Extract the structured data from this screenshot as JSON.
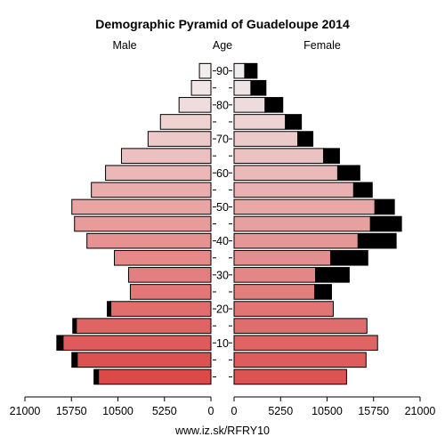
{
  "chart_data": {
    "type": "population-pyramid",
    "title": "Demographic Pyramid of Guadeloupe 2014",
    "left_label": "Male",
    "center_label": "Age",
    "right_label": "Female",
    "footer": "www.iz.sk/RFRY10",
    "x_ticks_left": [
      "21000",
      "15750",
      "10500",
      "5250",
      "0"
    ],
    "x_ticks_right": [
      "0",
      "5250",
      "10500",
      "15750",
      "21000"
    ],
    "x_max": 21000,
    "age_ticks": [
      "10",
      "20",
      "30",
      "40",
      "50",
      "60",
      "70",
      "80",
      "90"
    ],
    "age_groups": [
      "0-4",
      "5-9",
      "10-14",
      "15-19",
      "20-24",
      "25-29",
      "30-34",
      "35-39",
      "40-44",
      "45-49",
      "50-54",
      "55-59",
      "60-64",
      "65-69",
      "70-74",
      "75-79",
      "80-84",
      "85-89",
      "90+"
    ],
    "male": [
      12700,
      15100,
      16700,
      15200,
      11300,
      9100,
      9300,
      10900,
      14000,
      15400,
      15700,
      13500,
      11900,
      10100,
      7100,
      5700,
      3600,
      2200,
      1300
    ],
    "male_dark": [
      500,
      600,
      700,
      400,
      400,
      0,
      0,
      0,
      0,
      0,
      0,
      0,
      0,
      0,
      0,
      0,
      0,
      0,
      0
    ],
    "female": [
      12700,
      14900,
      16200,
      15000,
      11200,
      9100,
      9200,
      10900,
      14000,
      15400,
      15900,
      13500,
      11700,
      10100,
      7200,
      5800,
      3500,
      1900,
      1200
    ],
    "female_dark": [
      0,
      0,
      0,
      0,
      0,
      1900,
      3800,
      4200,
      4300,
      3500,
      2200,
      2100,
      2500,
      1800,
      1700,
      1800,
      2000,
      1700,
      1400
    ],
    "colors": {
      "male_young": "#dd4848",
      "male_old": "#f2eeee",
      "female_young": "#dd5353",
      "female_old": "#f0ecec",
      "excess": "#000000",
      "stroke": "#000000"
    }
  }
}
